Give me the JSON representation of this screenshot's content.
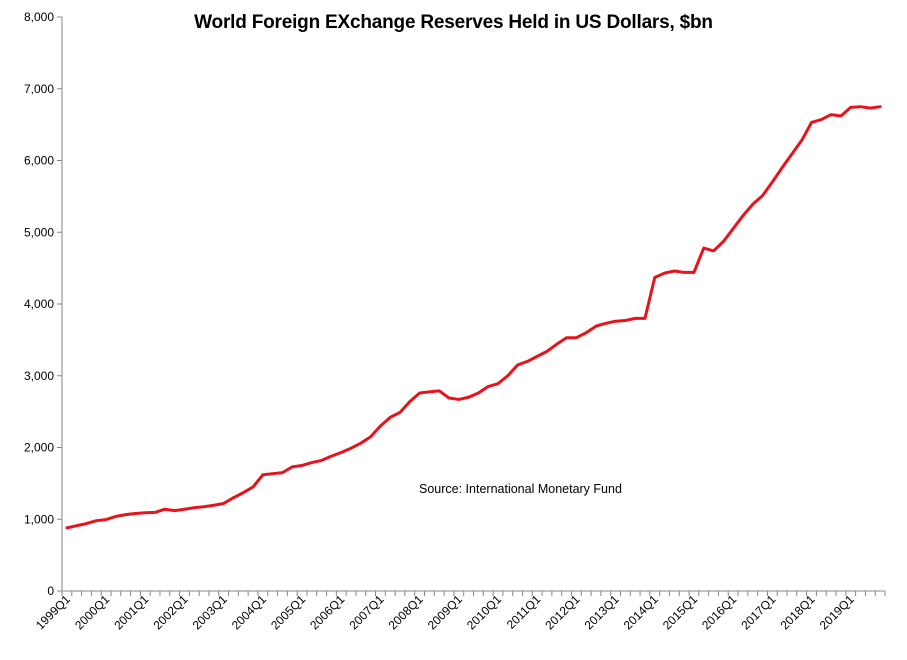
{
  "chart_data": {
    "type": "line",
    "title": "World Foreign EXchange Reserves  Held in US Dollars, $bn",
    "xlabel": "",
    "ylabel": "",
    "ylim": [
      0,
      8000
    ],
    "yticks": [
      "0",
      "1,000",
      "2,000",
      "3,000",
      "4,000",
      "5,000",
      "6,000",
      "7,000",
      "8,000"
    ],
    "ytick_values": [
      0,
      1000,
      2000,
      3000,
      4000,
      5000,
      6000,
      7000,
      8000
    ],
    "xticks": [
      "1999Q1",
      "2000Q1",
      "2001Q1",
      "2002Q1",
      "2003Q1",
      "2004Q1",
      "2005Q1",
      "2006Q1",
      "2007Q1",
      "2008Q1",
      "2009Q1",
      "2010Q1",
      "2011Q1",
      "2012Q1",
      "2013Q1",
      "2014Q1",
      "2015Q1",
      "2016Q1",
      "2017Q1",
      "2018Q1",
      "2019Q1"
    ],
    "grid": false,
    "annotation": "Source:  International  Monetary  Fund",
    "line_color": "#e8121a",
    "values": [
      880,
      910,
      940,
      980,
      995,
      1040,
      1065,
      1080,
      1090,
      1095,
      1140,
      1120,
      1140,
      1160,
      1175,
      1195,
      1220,
      1300,
      1370,
      1450,
      1620,
      1635,
      1650,
      1730,
      1750,
      1790,
      1820,
      1880,
      1930,
      1990,
      2060,
      2150,
      2300,
      2420,
      2490,
      2640,
      2760,
      2775,
      2790,
      2690,
      2670,
      2700,
      2760,
      2850,
      2890,
      3000,
      3150,
      3200,
      3270,
      3340,
      3440,
      3530,
      3530,
      3600,
      3690,
      3730,
      3760,
      3770,
      3800,
      3800,
      4370,
      4430,
      4460,
      4440,
      4440,
      4780,
      4740,
      4870,
      5050,
      5230,
      5390,
      5510,
      5700,
      5900,
      6090,
      6280,
      6530,
      6570,
      6640,
      6620,
      6740,
      6750,
      6730,
      6750
    ]
  }
}
